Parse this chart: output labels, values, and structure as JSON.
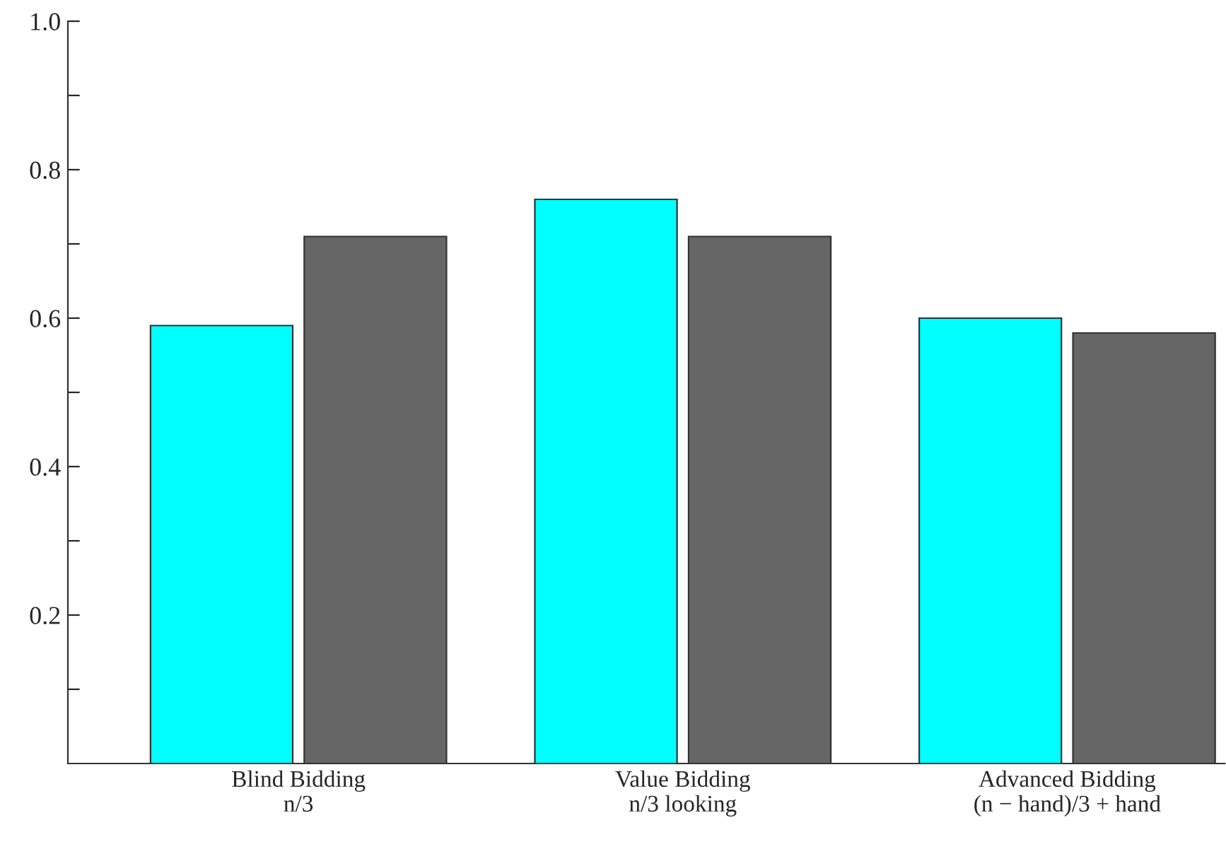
{
  "chart_data": {
    "type": "bar",
    "categories": [
      "Blind Bidding\nn/3",
      "Value Bidding\nn/3 looking",
      "Advanced Bidding\n(n − hand)/3 + hand"
    ],
    "series": [
      {
        "color": "#00ffff",
        "values": [
          0.59,
          0.76,
          0.6
        ]
      },
      {
        "color": "#666666",
        "values": [
          0.71,
          0.71,
          0.58
        ]
      }
    ],
    "ylim": [
      0,
      1.0
    ],
    "yticks": [
      {
        "value": 0.1,
        "label": null
      },
      0.2,
      {
        "value": 0.3,
        "label": null
      },
      0.4,
      {
        "value": 0.5,
        "label": null
      },
      0.6,
      {
        "value": 0.7,
        "label": null
      },
      0.8,
      {
        "value": 0.9,
        "label": null
      },
      {
        "value": 1.0,
        "label": "1.0"
      }
    ],
    "grid": false,
    "legend": false
  }
}
